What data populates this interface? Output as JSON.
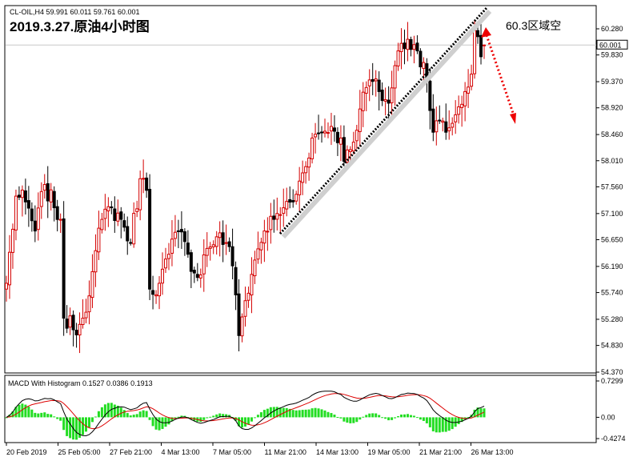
{
  "header": {
    "symbol_line": "CL-OIL,H4  59.991 60.011 59.761 60.001",
    "title": "2019.3.27.原油4小时图",
    "annotation": "60.3区域空"
  },
  "price_axis": {
    "ticks": [
      "60.280",
      "59.830",
      "59.370",
      "58.920",
      "58.460",
      "58.010",
      "57.560",
      "57.100",
      "56.650",
      "56.190",
      "55.740",
      "55.280",
      "54.830",
      "54.370"
    ],
    "current_label": "60.001"
  },
  "macd_panel": {
    "label": "MACD With Histogram 0.1527 0.0386 0.1913",
    "ticks": [
      "0.7299",
      "0.00",
      "-0.4274"
    ]
  },
  "time_axis": {
    "labels": [
      "20 Feb 2019",
      "25 Feb 05:00",
      "27 Feb 21:00",
      "4 Mar 13:00",
      "7 Mar 05:00",
      "11 Mar 21:00",
      "14 Mar 13:00",
      "19 Mar 05:00",
      "21 Mar 21:00",
      "26 Mar 13:00"
    ]
  },
  "colors": {
    "up": "#d40000",
    "down": "#000000",
    "histogram": "#22dd22",
    "macd_line": "#000000",
    "signal_line": "#dd0000",
    "trendline": "#000000",
    "arrow": "#ee0000",
    "grid_line": "#c8c8c8"
  },
  "chart_data": {
    "type": "candlestick",
    "title": "2019.3.27.原油4小时图",
    "symbol": "CL-OIL",
    "timeframe": "H4",
    "ylim": [
      54.37,
      60.28
    ],
    "current_price": 60.001,
    "ohlc_last": {
      "open": 59.991,
      "high": 60.011,
      "low": 59.761,
      "close": 60.001
    },
    "anchors": [
      [
        0,
        55.9
      ],
      [
        3,
        57.4
      ],
      [
        6,
        57.3
      ],
      [
        9,
        56.8
      ],
      [
        12,
        57.6
      ],
      [
        15,
        57.2
      ],
      [
        17,
        57.0
      ],
      [
        18,
        55.3
      ],
      [
        21,
        55.1
      ],
      [
        24,
        55.3
      ],
      [
        27,
        56.1
      ],
      [
        30,
        57.0
      ],
      [
        33,
        57.2
      ],
      [
        36,
        57.0
      ],
      [
        39,
        56.6
      ],
      [
        42,
        57.7
      ],
      [
        44,
        57.5
      ],
      [
        45,
        55.8
      ],
      [
        48,
        55.9
      ],
      [
        51,
        56.4
      ],
      [
        54,
        56.8
      ],
      [
        57,
        56.4
      ],
      [
        60,
        56.0
      ],
      [
        63,
        56.5
      ],
      [
        66,
        56.7
      ],
      [
        69,
        56.6
      ],
      [
        71,
        56.2
      ],
      [
        72,
        55.7
      ],
      [
        73,
        55.0
      ],
      [
        75,
        55.6
      ],
      [
        78,
        56.3
      ],
      [
        81,
        56.8
      ],
      [
        84,
        57.0
      ],
      [
        87,
        57.2
      ],
      [
        90,
        57.3
      ],
      [
        93,
        57.8
      ],
      [
        96,
        58.4
      ],
      [
        99,
        58.5
      ],
      [
        102,
        58.6
      ],
      [
        105,
        58.4
      ],
      [
        106,
        58.0
      ],
      [
        108,
        58.2
      ],
      [
        111,
        58.9
      ],
      [
        114,
        59.4
      ],
      [
        117,
        59.2
      ],
      [
        120,
        59.0
      ],
      [
        123,
        59.9
      ],
      [
        126,
        60.1
      ],
      [
        129,
        59.9
      ],
      [
        131,
        59.7
      ],
      [
        132,
        59.4
      ],
      [
        134,
        58.5
      ],
      [
        136,
        58.7
      ],
      [
        138,
        58.5
      ],
      [
        141,
        58.8
      ],
      [
        144,
        59.2
      ],
      [
        146,
        59.5
      ],
      [
        147,
        60.25
      ],
      [
        149,
        59.8
      ],
      [
        150,
        60.0
      ]
    ],
    "macd": {
      "name": "MACD With Histogram",
      "macd": 0.1527,
      "signal": 0.0386,
      "histogram": 0.1913,
      "ylim": [
        -0.4274,
        0.7299
      ]
    },
    "x_tick_labels": [
      "20 Feb 2019",
      "25 Feb 05:00",
      "27 Feb 21:00",
      "4 Mar 13:00",
      "7 Mar 05:00",
      "11 Mar 21:00",
      "14 Mar 13:00",
      "19 Mar 05:00",
      "21 Mar 21:00",
      "26 Mar 13:00"
    ],
    "annotations": [
      "60.3区域空"
    ]
  }
}
